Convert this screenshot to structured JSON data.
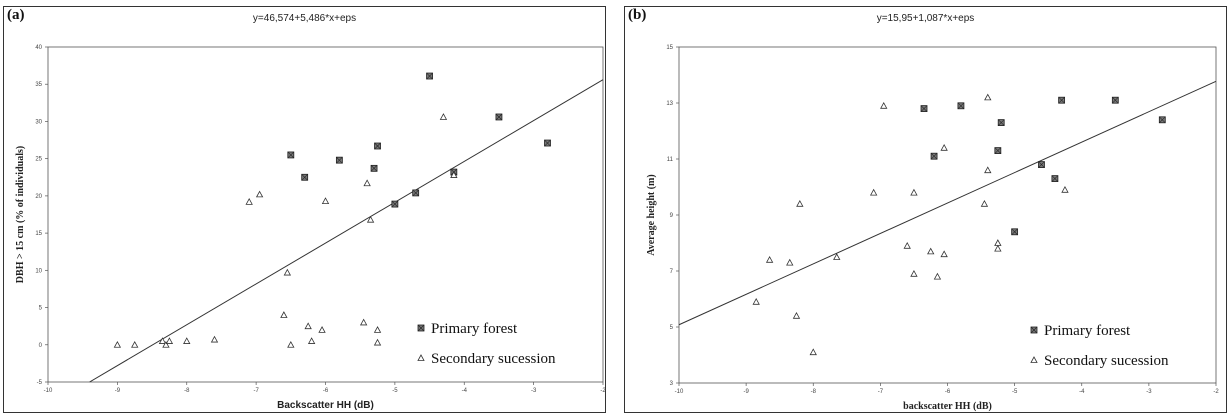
{
  "chart_data": [
    {
      "type": "scatter",
      "panel_label": "(a)",
      "title": "y=46,574+5,486*x+eps",
      "xlabel": "Backscatter HH (dB)",
      "ylabel": "DBH > 15 cm (% of individuals)",
      "xlim": [
        -10,
        -2
      ],
      "ylim": [
        -5,
        40
      ],
      "xticks": [
        "-10",
        "-9",
        "-8",
        "-7",
        "-6",
        "-5",
        "-4",
        "-3",
        "-2"
      ],
      "yticks": [
        "-5",
        "0",
        "5",
        "10",
        "15",
        "20",
        "25",
        "30",
        "35",
        "40"
      ],
      "grid": false,
      "legend_position": "bottom-right",
      "regression": {
        "intercept": 46.574,
        "slope": 5.486
      },
      "series": [
        {
          "name": "Primary forest",
          "marker": "square",
          "points": [
            [
              -6.5,
              25.5
            ],
            [
              -6.3,
              22.5
            ],
            [
              -5.8,
              24.8
            ],
            [
              -5.3,
              23.7
            ],
            [
              -5.25,
              26.7
            ],
            [
              -5.0,
              18.9
            ],
            [
              -4.7,
              20.4
            ],
            [
              -4.5,
              36.1
            ],
            [
              -4.15,
              23.2
            ],
            [
              -3.5,
              30.6
            ],
            [
              -2.8,
              27.1
            ]
          ]
        },
        {
          "name": "Secondary sucession",
          "marker": "triangle",
          "points": [
            [
              -9.0,
              0.0
            ],
            [
              -8.75,
              0.0
            ],
            [
              -8.35,
              0.5
            ],
            [
              -8.3,
              0.0
            ],
            [
              -8.25,
              0.5
            ],
            [
              -8.0,
              0.5
            ],
            [
              -7.6,
              0.7
            ],
            [
              -7.1,
              19.2
            ],
            [
              -6.95,
              20.2
            ],
            [
              -6.6,
              4.0
            ],
            [
              -6.55,
              9.7
            ],
            [
              -6.5,
              0.0
            ],
            [
              -6.25,
              2.5
            ],
            [
              -6.2,
              0.5
            ],
            [
              -6.05,
              2.0
            ],
            [
              -6.0,
              19.3
            ],
            [
              -5.45,
              3.0
            ],
            [
              -5.4,
              21.7
            ],
            [
              -5.35,
              16.8
            ],
            [
              -5.25,
              2.0
            ],
            [
              -5.25,
              0.3
            ],
            [
              -4.3,
              30.6
            ],
            [
              -4.15,
              22.8
            ]
          ]
        }
      ]
    },
    {
      "type": "scatter",
      "panel_label": "(b)",
      "title": "y=15,95+1,087*x+eps",
      "xlabel": "backscatter HH (dB)",
      "ylabel": "Average height (m)",
      "xlim": [
        -10,
        -2
      ],
      "ylim": [
        3,
        15
      ],
      "xticks": [
        "-10",
        "-9",
        "-8",
        "-7",
        "-6",
        "-5",
        "-4",
        "-3",
        "-2"
      ],
      "yticks": [
        "3",
        "5",
        "7",
        "9",
        "11",
        "13",
        "15"
      ],
      "grid": false,
      "legend_position": "bottom-right",
      "regression": {
        "intercept": 15.95,
        "slope": 1.087
      },
      "series": [
        {
          "name": "Primary forest",
          "marker": "square",
          "points": [
            [
              -6.35,
              12.8
            ],
            [
              -6.2,
              11.1
            ],
            [
              -5.8,
              12.9
            ],
            [
              -5.25,
              11.3
            ],
            [
              -5.2,
              12.3
            ],
            [
              -5.0,
              8.4
            ],
            [
              -4.6,
              10.8
            ],
            [
              -4.4,
              10.3
            ],
            [
              -4.3,
              13.1
            ],
            [
              -3.5,
              13.1
            ],
            [
              -2.8,
              12.4
            ]
          ]
        },
        {
          "name": "Secondary sucession",
          "marker": "triangle",
          "points": [
            [
              -8.85,
              5.9
            ],
            [
              -8.65,
              7.4
            ],
            [
              -8.35,
              7.3
            ],
            [
              -8.25,
              5.4
            ],
            [
              -8.2,
              9.4
            ],
            [
              -8.0,
              4.1
            ],
            [
              -7.65,
              7.5
            ],
            [
              -7.1,
              9.8
            ],
            [
              -6.95,
              12.9
            ],
            [
              -6.6,
              7.9
            ],
            [
              -6.5,
              9.8
            ],
            [
              -6.5,
              6.9
            ],
            [
              -6.25,
              7.7
            ],
            [
              -6.15,
              6.8
            ],
            [
              -6.05,
              7.6
            ],
            [
              -6.05,
              11.4
            ],
            [
              -5.45,
              9.4
            ],
            [
              -5.4,
              13.2
            ],
            [
              -5.4,
              10.6
            ],
            [
              -5.25,
              8.0
            ],
            [
              -5.25,
              7.8
            ],
            [
              -4.25,
              9.9
            ]
          ]
        }
      ]
    }
  ]
}
